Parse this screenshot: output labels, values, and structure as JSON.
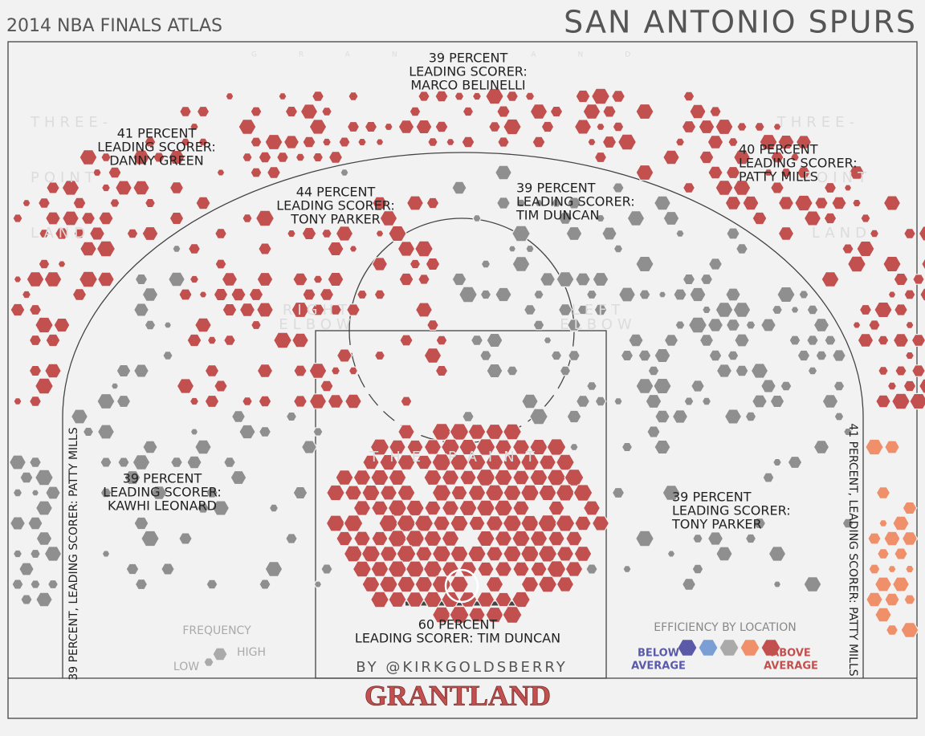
{
  "header": {
    "title": "2014 NBA FINALS ATLAS",
    "team": "SAN ANTONIO SPURS"
  },
  "zones": [
    {
      "lines": [
        "39 PERCENT",
        "LEADING SCORER:",
        "MARCO BELINELLI"
      ]
    },
    {
      "lines": [
        "41 PERCENT",
        "LEADING SCORER:",
        "DANNY GREEN"
      ]
    },
    {
      "lines": [
        "40 PERCENT",
        "LEADING SCORER:",
        "PATTY MILLS"
      ]
    },
    {
      "lines": [
        "44 PERCENT",
        "LEADING SCORER:",
        "TONY PARKER"
      ]
    },
    {
      "lines": [
        "39 PERCENT",
        "LEADING SCORER:",
        "TIM DUNCAN"
      ]
    },
    {
      "lines": [
        "39 PERCENT",
        "LEADING SCORER:",
        "KAWHI LEONARD"
      ]
    },
    {
      "lines": [
        "39 PERCENT",
        "LEADING SCORER:",
        "TONY PARKER"
      ]
    },
    {
      "lines": [
        "60 PERCENT",
        "LEADING SCORER: TIM DUNCAN"
      ]
    }
  ],
  "corners": {
    "left": "39 PERCENT, LEADING SCORER: PATTY MILLS",
    "right": "41 PERCENT, LEADING SCORER: PATTY MILLS"
  },
  "watermarks": {
    "three": "THREE-",
    "point": "POINT",
    "land": "LAND",
    "right_elbow": [
      "RIGHT",
      "ELBOW"
    ],
    "left_elbow": [
      "LEFT",
      "ELBOW"
    ],
    "paint": "THE PAINT",
    "brand": "GRANTLAND"
  },
  "legend": {
    "frequency": {
      "title": "FREQUENCY",
      "low": "LOW",
      "high": "HIGH"
    },
    "efficiency": {
      "title": "EFFICIENCY BY LOCATION",
      "below": [
        "BELOW",
        "AVERAGE"
      ],
      "above": [
        "ABOVE",
        "AVERAGE"
      ]
    }
  },
  "footer": {
    "byline": "BY @KIRKGOLDSBERRY",
    "brand": "GRANTLAND"
  }
}
